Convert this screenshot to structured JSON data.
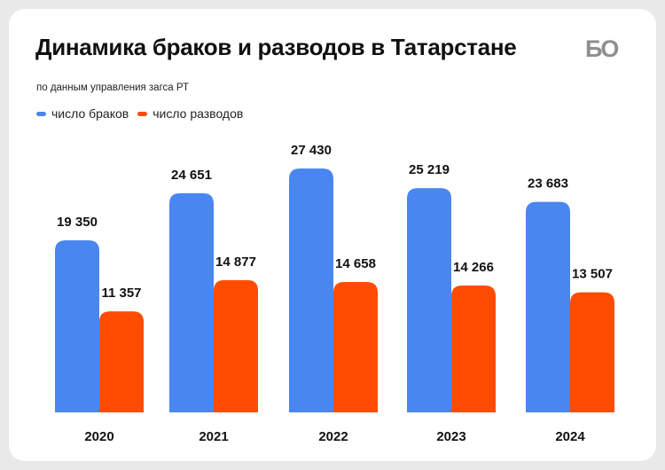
{
  "header": {
    "title": "Динамика браков и разводов в Татарстане",
    "subtitle": "по данным управления загса РТ",
    "logo_text": "БО"
  },
  "legend": [
    {
      "label": "число браков",
      "color": "#4a86f0"
    },
    {
      "label": "число разводов",
      "color": "#ff4c00"
    }
  ],
  "chart_data": {
    "type": "bar",
    "title": "Динамика браков и разводов в Татарстане",
    "subtitle": "по данным управления загса РТ",
    "categories": [
      "2020",
      "2021",
      "2022",
      "2023",
      "2024"
    ],
    "series": [
      {
        "name": "число браков",
        "color": "#4a86f0",
        "values": [
          19350,
          24651,
          27430,
          25219,
          23683
        ],
        "labels": [
          "19 350",
          "24 651",
          "27 430",
          "25 219",
          "23 683"
        ]
      },
      {
        "name": "число разводов",
        "color": "#ff4c00",
        "values": [
          11357,
          14877,
          14658,
          14266,
          13507
        ],
        "labels": [
          "11 357",
          "14 877",
          "14 658",
          "14 266",
          "13 507"
        ]
      }
    ],
    "xlabel": "",
    "ylabel": "",
    "ylim": [
      0,
      27430
    ],
    "grid": false,
    "legend_position": "top-left"
  }
}
